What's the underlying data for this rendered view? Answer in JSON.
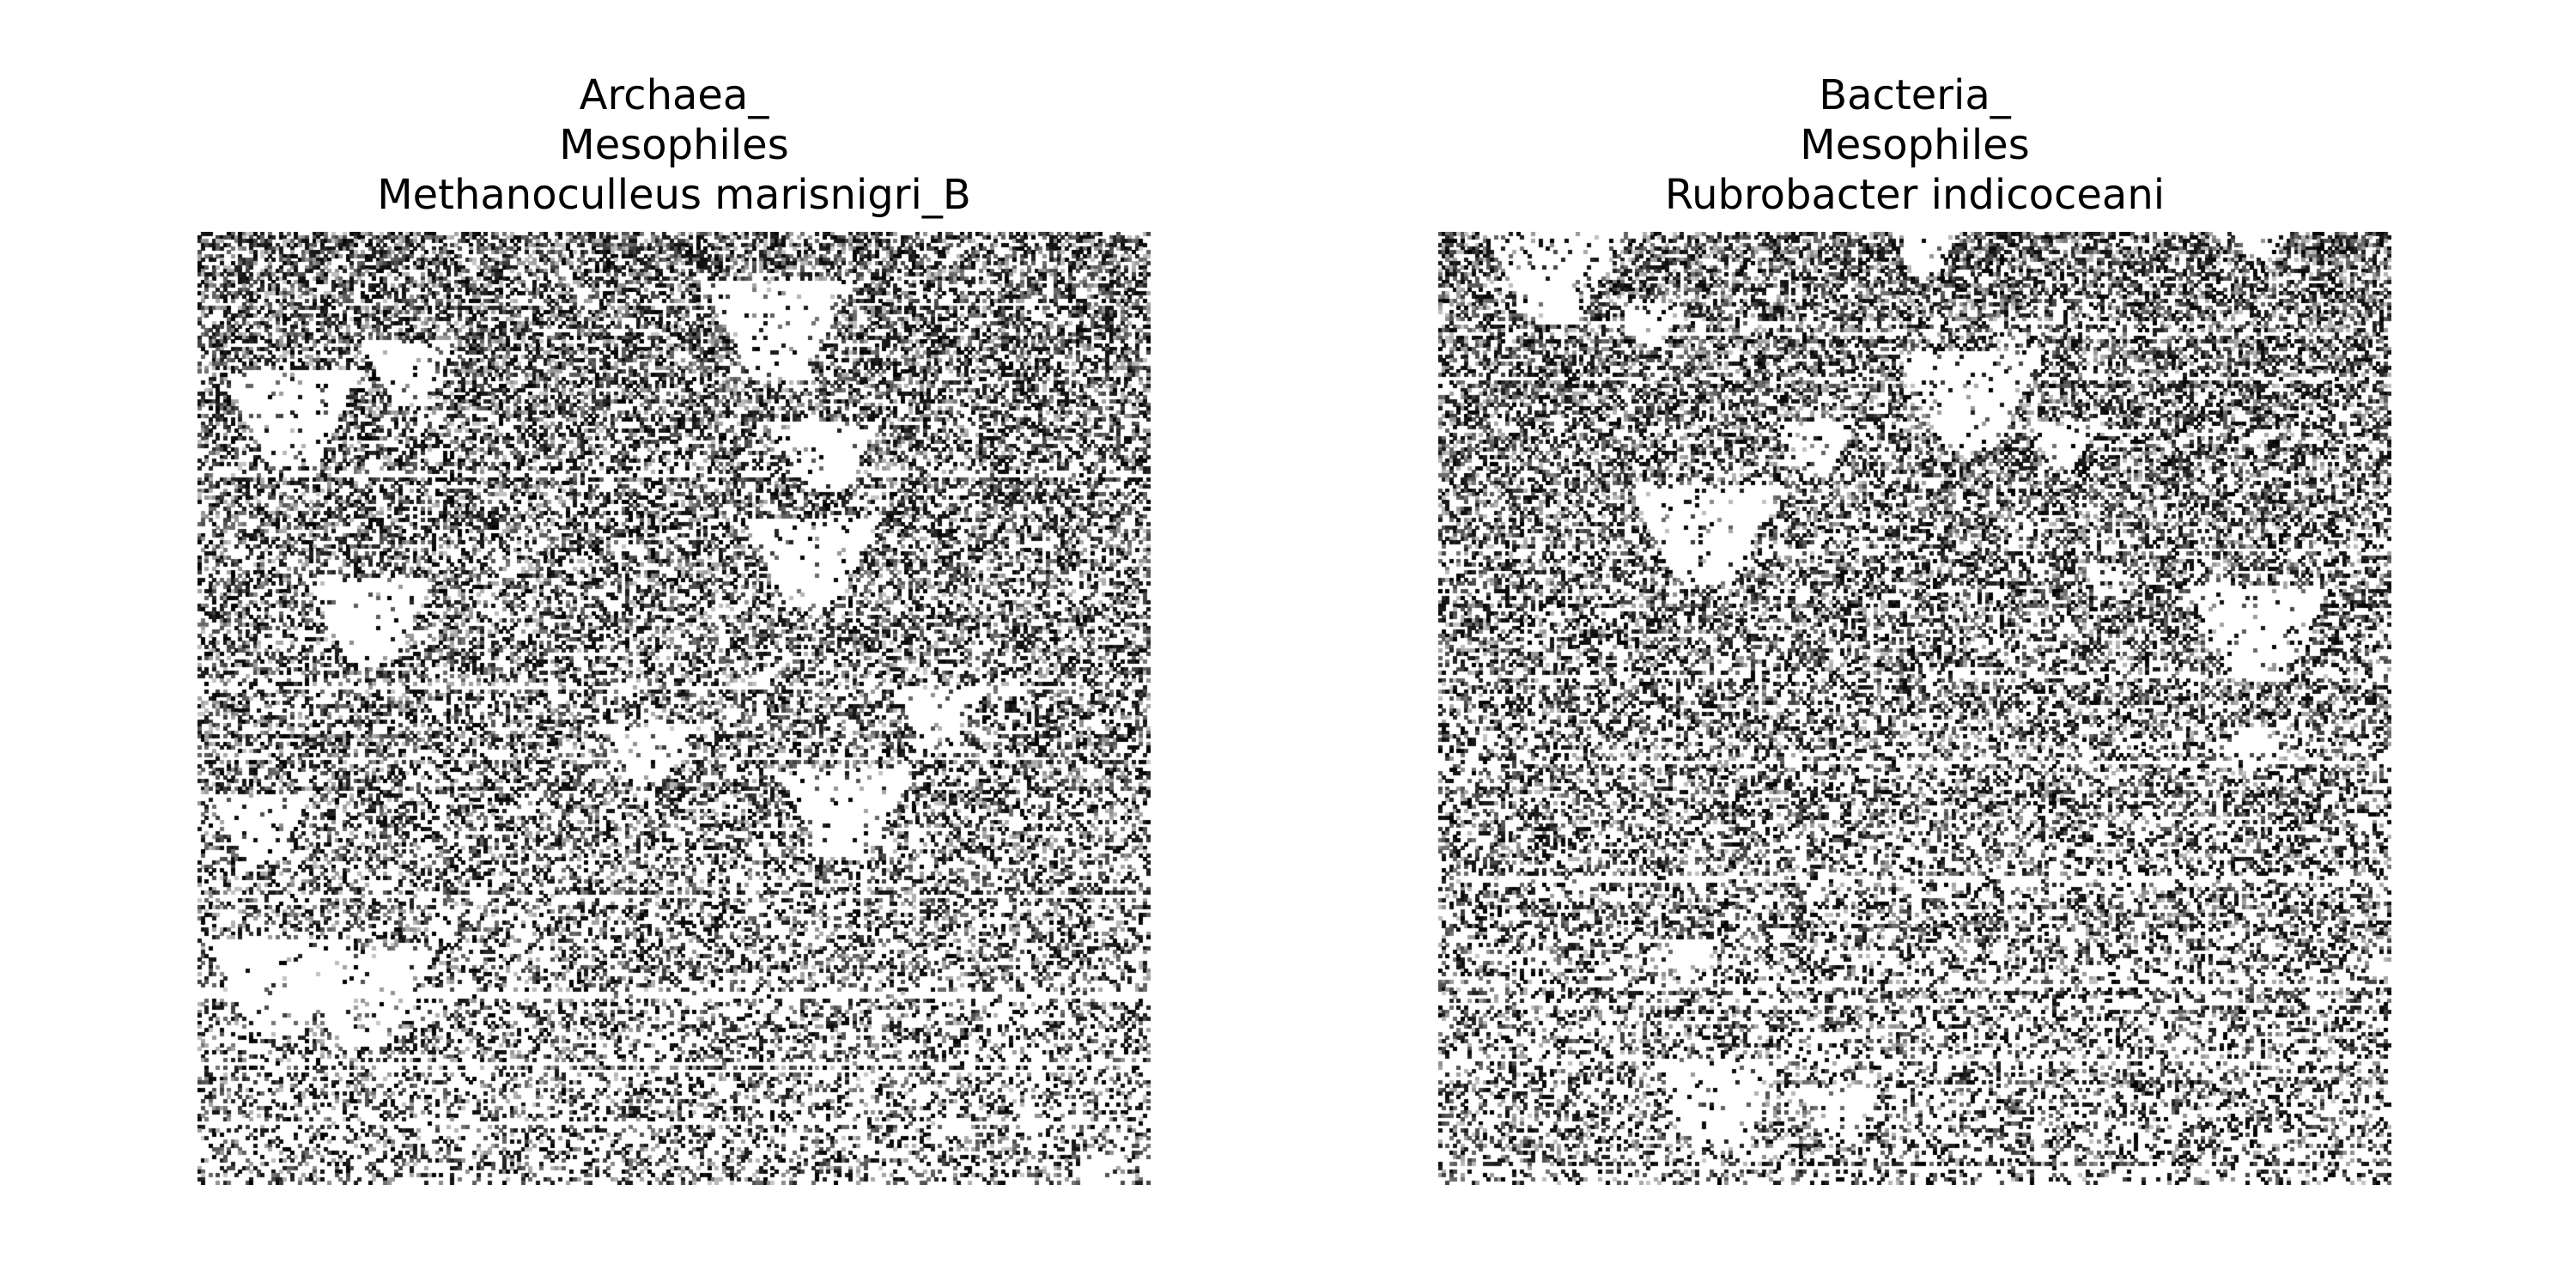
{
  "chart_data": [
    {
      "type": "heatmap",
      "title_lines": [
        "Archaea_",
        "Mesophiles",
        "Methanoculleus marisnigri_B"
      ],
      "colormap": "grayscale (white = low, black = high)",
      "axes": "off",
      "grid": false,
      "legend": "none",
      "seed": 7
    },
    {
      "type": "heatmap",
      "title_lines": [
        "Bacteria_",
        "Mesophiles",
        "Rubrobacter indicoceani"
      ],
      "colormap": "grayscale (white = low, black = high)",
      "axes": "off",
      "grid": false,
      "legend": "none",
      "seed": 23
    }
  ]
}
